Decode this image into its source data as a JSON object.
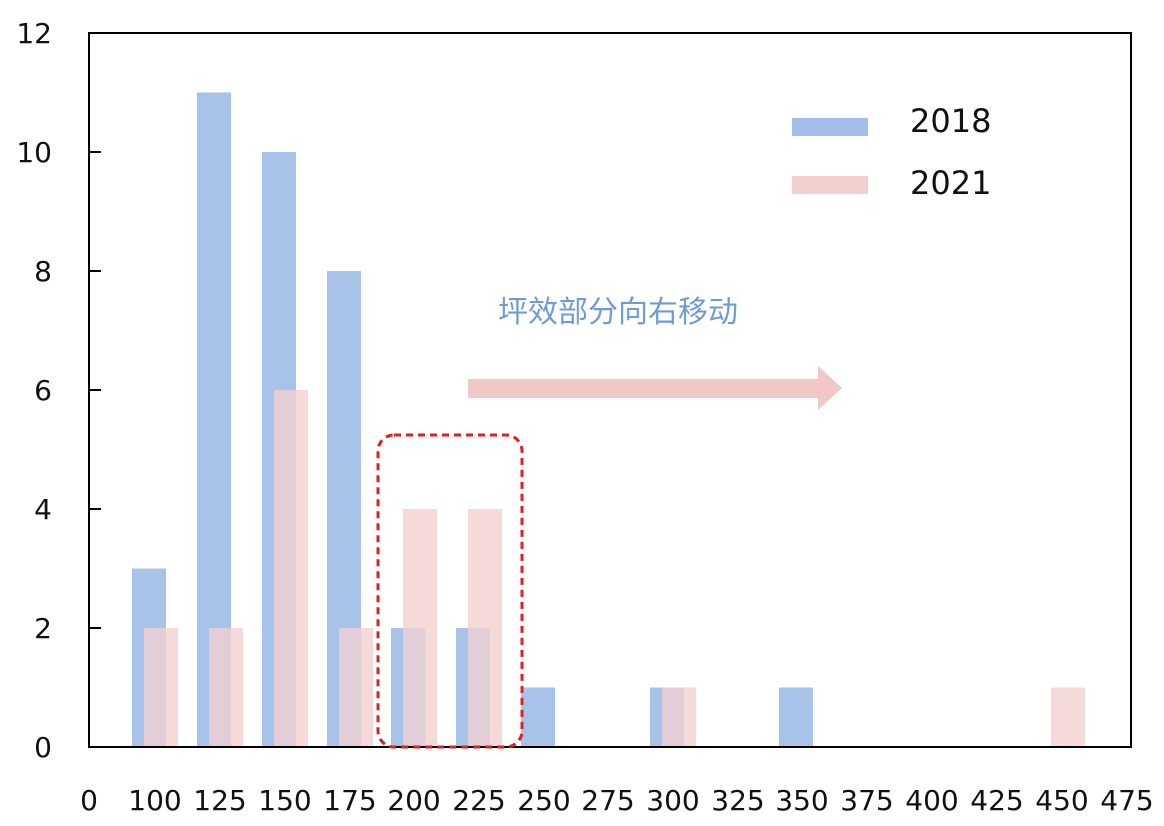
{
  "chart_data": {
    "type": "bar",
    "x_ticks": [
      0,
      100,
      125,
      150,
      175,
      200,
      225,
      250,
      275,
      300,
      325,
      350,
      375,
      400,
      425,
      450,
      475
    ],
    "x_range": [
      0,
      475
    ],
    "ylim": [
      0,
      12
    ],
    "y_ticks": [
      0,
      2,
      4,
      6,
      8,
      10,
      12
    ],
    "grid": false,
    "legend_position": "top-right",
    "series": [
      {
        "name": "2018",
        "color": "#9fbde8",
        "points": [
          {
            "x": 100,
            "y": 3
          },
          {
            "x": 125,
            "y": 11
          },
          {
            "x": 150,
            "y": 10
          },
          {
            "x": 175,
            "y": 8
          },
          {
            "x": 200,
            "y": 2
          },
          {
            "x": 225,
            "y": 2
          },
          {
            "x": 250,
            "y": 1
          },
          {
            "x": 300,
            "y": 1
          },
          {
            "x": 350,
            "y": 1
          }
        ]
      },
      {
        "name": "2021",
        "color": "#f3cfd0",
        "points": [
          {
            "x": 100,
            "y": 2
          },
          {
            "x": 125,
            "y": 2
          },
          {
            "x": 150,
            "y": 6
          },
          {
            "x": 175,
            "y": 2
          },
          {
            "x": 200,
            "y": 4
          },
          {
            "x": 225,
            "y": 4
          },
          {
            "x": 300,
            "y": 1
          },
          {
            "x": 450,
            "y": 1
          }
        ]
      }
    ],
    "annotations": [
      {
        "text": "坪效部分向右移动",
        "color": "#6f9bd6"
      }
    ],
    "highlight_color": "#e02020",
    "arrow_color": "#f0c8c8"
  }
}
